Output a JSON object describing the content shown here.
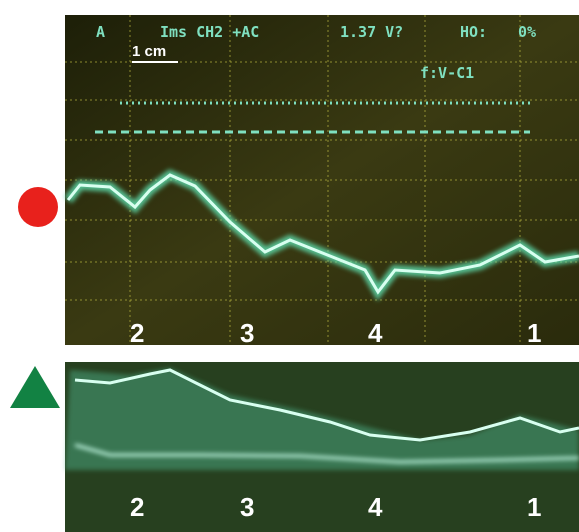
{
  "panels": [
    {
      "header": {
        "channel": "A",
        "timebase": "Ims CH2 +AC",
        "voltage": "1.37 V?",
        "hold": "HO:",
        "percent": "0%"
      },
      "scale": "1 cm",
      "function": "f:V-C1",
      "positions": [
        "2",
        "3",
        "4",
        "1"
      ]
    },
    {
      "positions": [
        "2",
        "3",
        "4",
        "1"
      ]
    }
  ]
}
